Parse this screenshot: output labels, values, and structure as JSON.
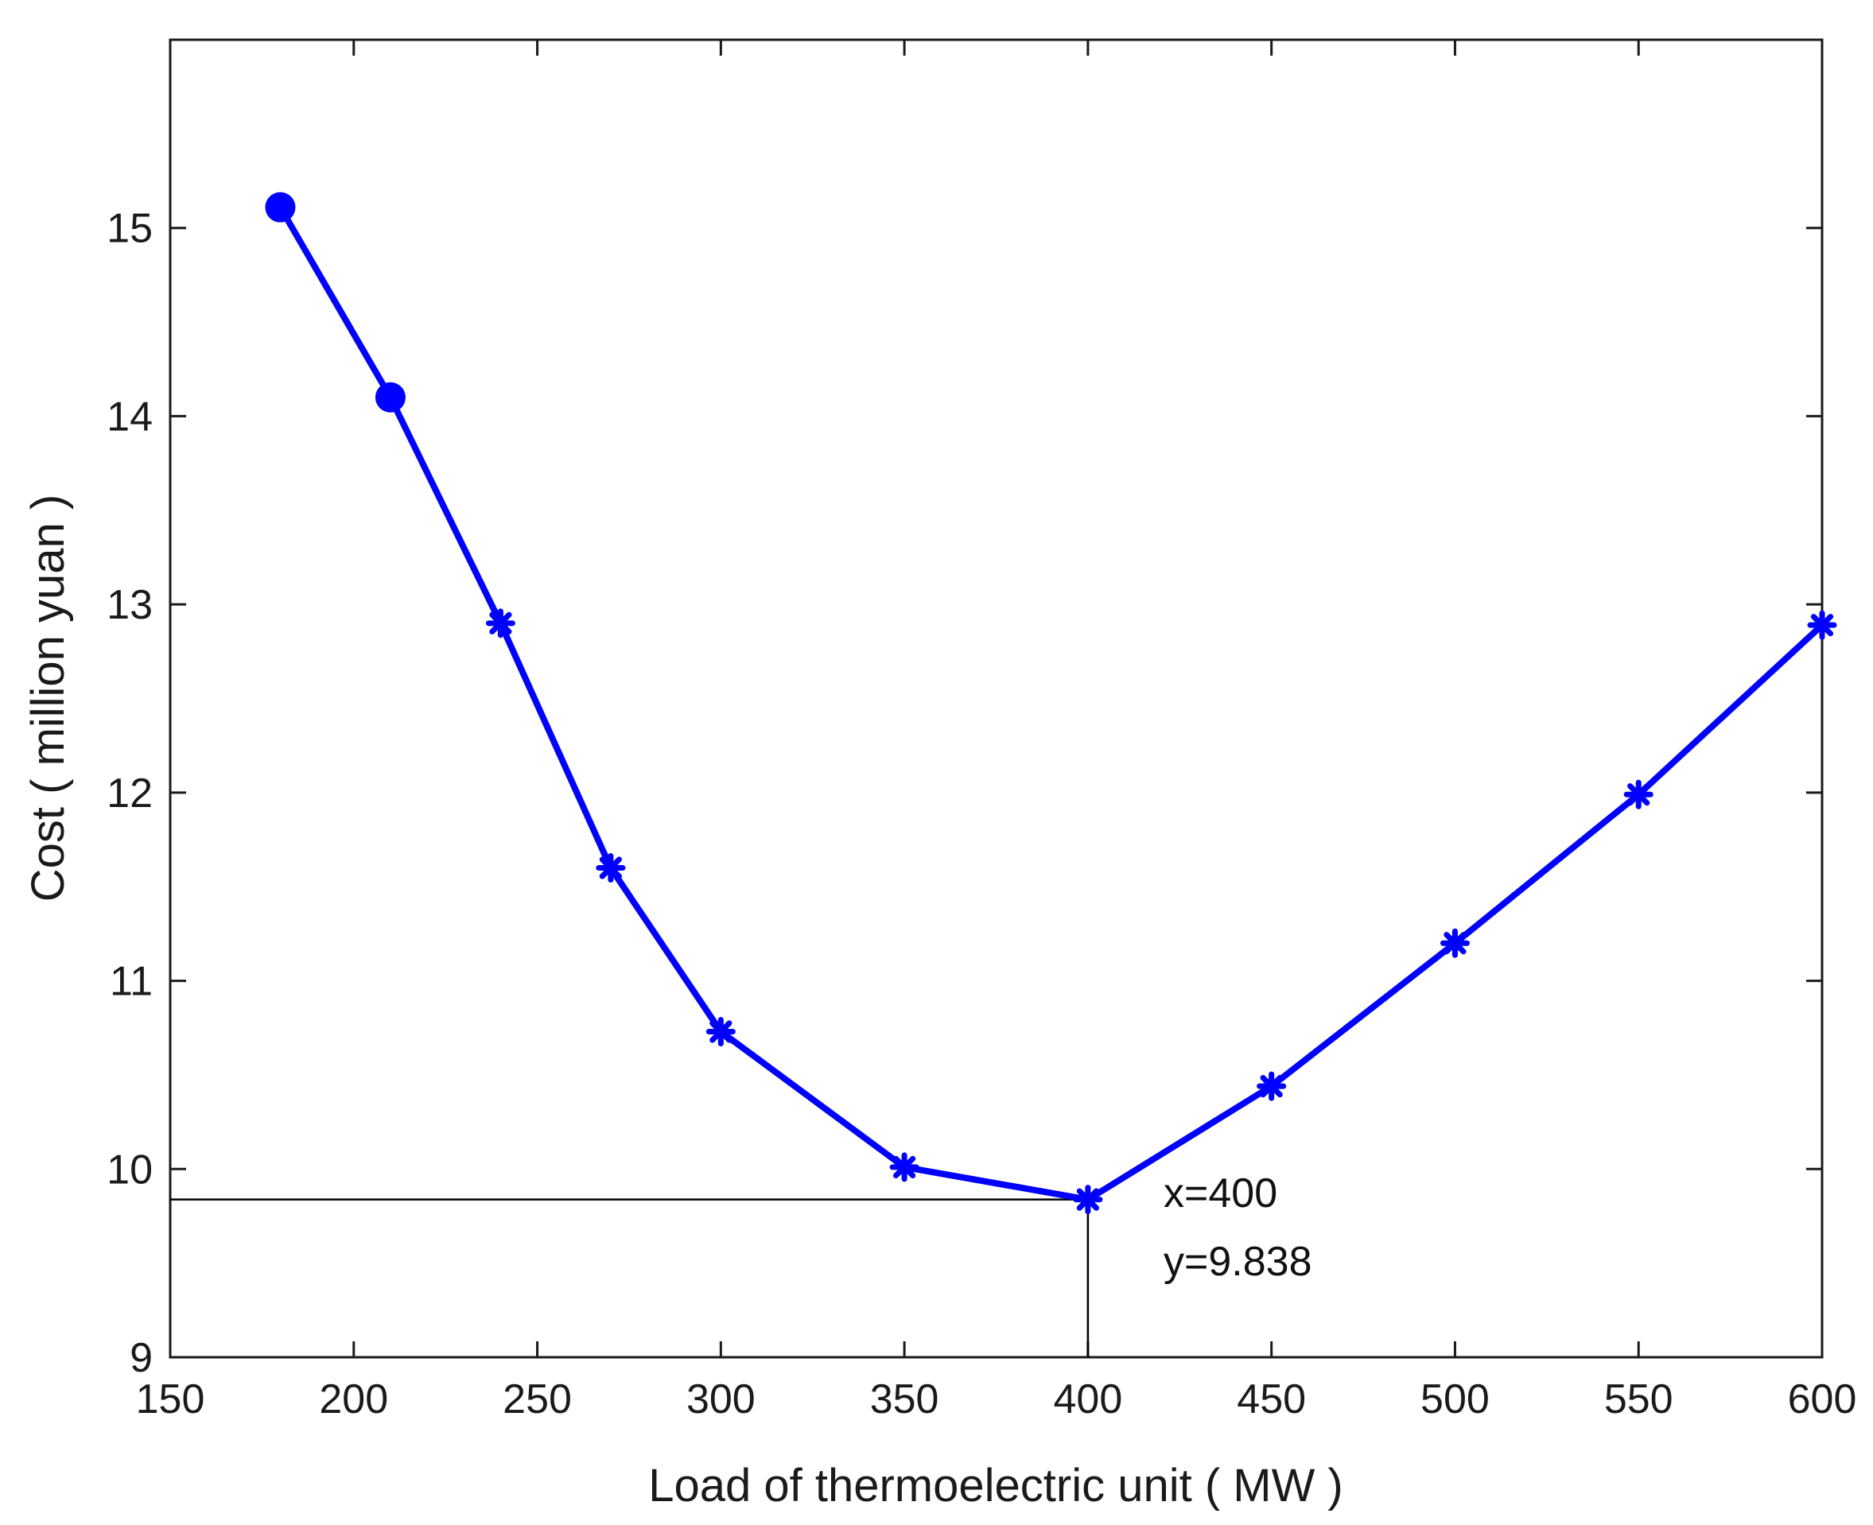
{
  "chart_data": {
    "type": "line",
    "title": "",
    "xlabel": "Load of thermoelectric unit ( MW )",
    "ylabel": "Cost ( million yuan )",
    "xlim": [
      150,
      600
    ],
    "ylim": [
      9,
      16
    ],
    "xticks": [
      150,
      200,
      250,
      300,
      350,
      400,
      450,
      500,
      550,
      600
    ],
    "yticks": [
      9,
      10,
      11,
      12,
      13,
      14,
      15
    ],
    "grid": false,
    "legend": "none",
    "colors": {
      "series": "#0000ff",
      "guide": "#000000",
      "axis": "#1a1a1a"
    },
    "series": [
      {
        "points": [
          {
            "x": 180,
            "y": 15.11,
            "marker": "circle"
          },
          {
            "x": 210,
            "y": 14.1,
            "marker": "circle"
          },
          {
            "x": 240,
            "y": 12.9,
            "marker": "asterisk"
          },
          {
            "x": 270,
            "y": 11.6,
            "marker": "asterisk"
          },
          {
            "x": 300,
            "y": 10.73,
            "marker": "asterisk"
          },
          {
            "x": 350,
            "y": 10.01,
            "marker": "asterisk"
          },
          {
            "x": 400,
            "y": 9.838,
            "marker": "asterisk"
          },
          {
            "x": 450,
            "y": 10.44,
            "marker": "asterisk"
          },
          {
            "x": 500,
            "y": 11.2,
            "marker": "asterisk"
          },
          {
            "x": 550,
            "y": 11.99,
            "marker": "asterisk"
          },
          {
            "x": 600,
            "y": 12.89,
            "marker": "asterisk"
          }
        ]
      }
    ],
    "annotation": {
      "x": 400,
      "y": 9.838,
      "x_text": "x=400",
      "y_text": "y=9.838"
    }
  }
}
